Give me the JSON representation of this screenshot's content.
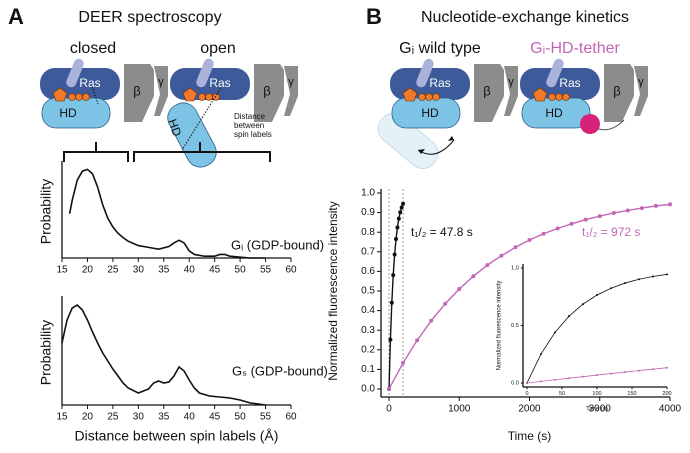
{
  "panels": [
    {
      "letter": "A",
      "title": "DEER spectroscopy"
    },
    {
      "letter": "B",
      "title": "Nucleotide-exchange kinetics"
    }
  ],
  "diagram": {
    "closed": "closed",
    "open": "open",
    "wild_type": "Gᵢ wild type",
    "tether": "Gᵢ-HD-tether",
    "ras": "Ras",
    "hd": "HD",
    "beta": "β",
    "gamma": "γ",
    "distance_label": [
      "Distance",
      "between",
      "spin labels"
    ]
  },
  "chart_data": [
    {
      "type": "line",
      "ylabel": "Probability",
      "annotation": "Gᵢ (GDP-bound)",
      "color": "#111111",
      "x": [
        16.5,
        17,
        18,
        19,
        20,
        21,
        22,
        23,
        24,
        25,
        26,
        27,
        28,
        30,
        32,
        34,
        36,
        37,
        38,
        39,
        40,
        41,
        43,
        45,
        46,
        47,
        48,
        50,
        52,
        55
      ],
      "values": [
        0.5,
        0.65,
        0.88,
        0.98,
        1.0,
        0.95,
        0.8,
        0.6,
        0.45,
        0.35,
        0.28,
        0.23,
        0.19,
        0.14,
        0.12,
        0.1,
        0.13,
        0.17,
        0.2,
        0.17,
        0.08,
        0.04,
        0.02,
        0.02,
        0.04,
        0.04,
        0.02,
        0.01,
        0.0,
        0.0
      ],
      "xlim": [
        15,
        60
      ],
      "xticks": [
        15,
        20,
        25,
        30,
        35,
        40,
        45,
        50,
        55,
        60
      ],
      "ylim": [
        0,
        1.05
      ]
    },
    {
      "type": "line",
      "ylabel": "Probability",
      "xlabel": "Distance between spin labels (Å)",
      "annotation": "Gₛ (GDP-bound)",
      "color": "#111111",
      "x": [
        15,
        16,
        17,
        18,
        19,
        20,
        21,
        22,
        23,
        24,
        25,
        26,
        27,
        28,
        30,
        32,
        33,
        34,
        35,
        36,
        37,
        38,
        39,
        40,
        41,
        42,
        44,
        46,
        48,
        50,
        52,
        55
      ],
      "values": [
        0.62,
        0.85,
        0.97,
        1.0,
        0.95,
        0.85,
        0.73,
        0.62,
        0.52,
        0.44,
        0.36,
        0.29,
        0.22,
        0.17,
        0.12,
        0.16,
        0.22,
        0.24,
        0.22,
        0.23,
        0.29,
        0.38,
        0.34,
        0.25,
        0.17,
        0.12,
        0.09,
        0.08,
        0.07,
        0.05,
        0.02,
        0.0
      ],
      "xlim": [
        15,
        60
      ],
      "xticks": [
        15,
        20,
        25,
        30,
        35,
        40,
        45,
        50,
        55,
        60
      ],
      "ylim": [
        0,
        1.05
      ]
    },
    {
      "type": "scatter",
      "ylabel": "Normalized fluorescence intensity",
      "xlabel": "Time (s)",
      "annotations": [
        "t₁/₂ = 47.8 s",
        "t₁/₂ = 972 s"
      ],
      "series": [
        {
          "color": "#111111",
          "x": [
            0,
            20,
            40,
            60,
            80,
            100,
            120,
            140,
            160,
            180,
            200
          ],
          "values": [
            0,
            0.252,
            0.44,
            0.581,
            0.686,
            0.765,
            0.824,
            0.869,
            0.902,
            0.926,
            0.945
          ]
        },
        {
          "color": "#c266b8",
          "x": [
            0,
            200,
            400,
            600,
            800,
            1000,
            1200,
            1400,
            1600,
            1800,
            2000,
            2200,
            2400,
            2600,
            2800,
            3000,
            3200,
            3400,
            3600,
            3800,
            4000
          ],
          "values": [
            0,
            0.133,
            0.248,
            0.348,
            0.435,
            0.51,
            0.575,
            0.632,
            0.68,
            0.723,
            0.76,
            0.792,
            0.819,
            0.843,
            0.864,
            0.882,
            0.898,
            0.911,
            0.923,
            0.934,
            0.942
          ]
        }
      ],
      "xlim": [
        0,
        4000
      ],
      "xticks": [
        0,
        1000,
        2000,
        3000,
        4000
      ],
      "ylim": [
        0,
        1
      ],
      "yticks": [
        {
          "value": 0,
          "label": "0.0"
        },
        0.1,
        0.2,
        0.3,
        0.4,
        0.5,
        0.6,
        0.7,
        0.8,
        0.9,
        {
          "value": 1,
          "label": "1.0"
        }
      ]
    },
    {
      "type": "scatter",
      "ylabel": "Normalized fluorescence intensity",
      "xlabel": "Time (s)",
      "series": [
        {
          "color": "#111111",
          "x": [
            0,
            20,
            40,
            60,
            80,
            100,
            120,
            140,
            160,
            180,
            200
          ],
          "values": [
            0,
            0.252,
            0.44,
            0.581,
            0.686,
            0.765,
            0.824,
            0.869,
            0.902,
            0.926,
            0.945
          ]
        },
        {
          "color": "#c266b8",
          "x": [
            0,
            20,
            40,
            60,
            80,
            100,
            120,
            140,
            160,
            180,
            200
          ],
          "values": [
            0,
            0.014,
            0.028,
            0.042,
            0.055,
            0.069,
            0.082,
            0.095,
            0.108,
            0.12,
            0.133
          ]
        }
      ],
      "xlim": [
        0,
        200
      ],
      "xticks": [
        0,
        50,
        100,
        150,
        200
      ],
      "ylim": [
        0,
        1
      ],
      "yticks": [
        {
          "value": 0,
          "label": "0.0"
        },
        0.5,
        {
          "value": 1,
          "label": "1.0"
        }
      ]
    }
  ]
}
